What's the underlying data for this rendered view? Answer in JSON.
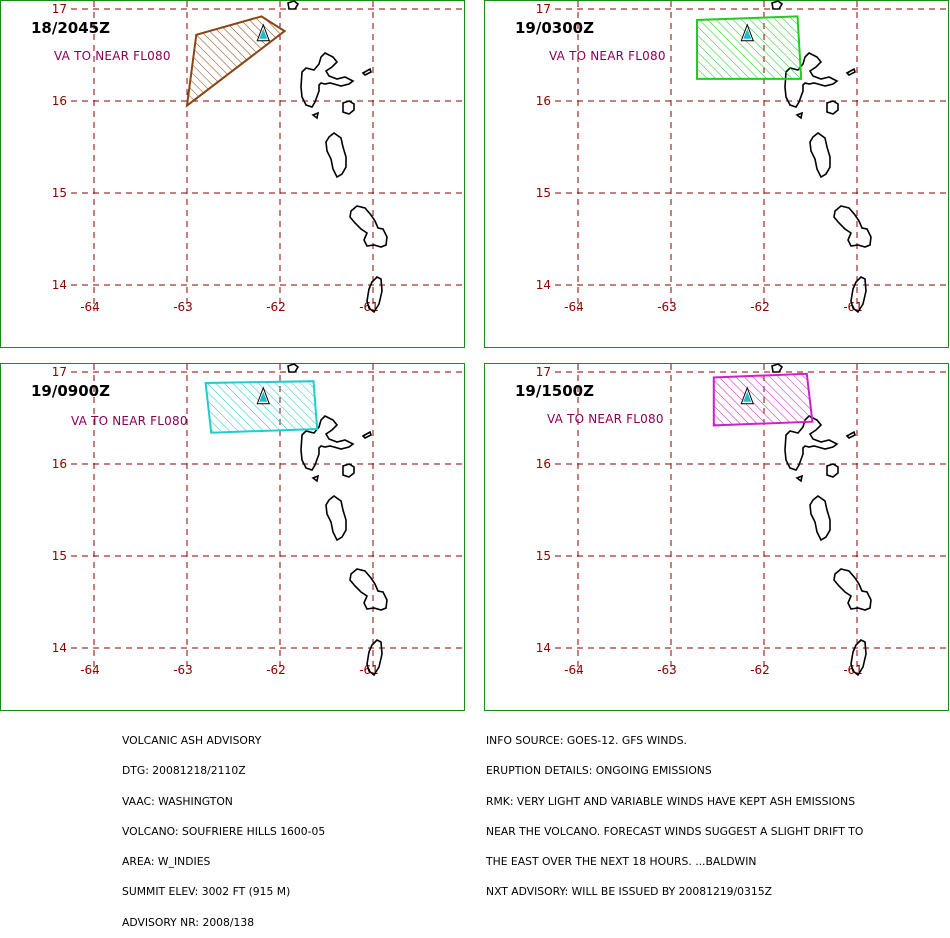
{
  "panels": [
    {
      "time_label": "18/2045Z",
      "va_label": "VA TO NEAR FL080",
      "color": "#8b4513",
      "polygon": [
        [
          -62.2,
          16.92
        ],
        [
          -61.95,
          16.76
        ],
        [
          -63.0,
          15.95
        ],
        [
          -62.9,
          16.72
        ]
      ]
    },
    {
      "time_label": "19/0300Z",
      "va_label": "VA TO NEAR FL080",
      "color": "#22cc22",
      "polygon": [
        [
          -62.72,
          16.88
        ],
        [
          -62.72,
          16.24
        ],
        [
          -61.6,
          16.24
        ],
        [
          -61.64,
          16.92
        ]
      ]
    },
    {
      "time_label": "19/0900Z",
      "va_label": "VA TO NEAR FL080",
      "color": "#22cccc",
      "polygon": [
        [
          -62.8,
          16.88
        ],
        [
          -62.74,
          16.34
        ],
        [
          -61.6,
          16.38
        ],
        [
          -61.64,
          16.9
        ]
      ]
    },
    {
      "time_label": "19/1500Z",
      "va_label": "VA TO NEAR FL080",
      "color": "#cc22cc",
      "polygon": [
        [
          -62.54,
          16.94
        ],
        [
          -62.54,
          16.42
        ],
        [
          -61.48,
          16.46
        ],
        [
          -61.54,
          16.98
        ]
      ]
    }
  ],
  "axes": {
    "lon_ticks": [
      "-64",
      "-63",
      "-62",
      "-61"
    ],
    "lat_ticks": [
      "17",
      "16",
      "15",
      "14"
    ],
    "grid_color": "#8b0000",
    "volcano": {
      "lon": -62.18,
      "lat": 16.72,
      "color": "#22bbcc"
    }
  },
  "advisory_left": [
    "VOLCANIC ASH ADVISORY",
    "DTG: 20081218/2110Z",
    "VAAC: WASHINGTON",
    "VOLCANO: SOUFRIERE HILLS 1600-05",
    "AREA: W_INDIES",
    "SUMMIT ELEV: 3002 FT (915 M)",
    "ADVISORY NR: 2008/138"
  ],
  "advisory_right": [
    "INFO SOURCE: GOES-12. GFS WINDS.",
    "ERUPTION DETAILS: ONGOING EMISSIONS",
    "RMK: VERY LIGHT AND VARIABLE WINDS HAVE KEPT ASH EMISSIONS",
    "NEAR THE VOLCANO. FORECAST WINDS SUGGEST A SLIGHT DRIFT TO",
    "THE EAST OVER THE NEXT 18 HOURS. ...BALDWIN",
    "NXT ADVISORY: WILL BE ISSUED BY 20081219/0315Z"
  ]
}
